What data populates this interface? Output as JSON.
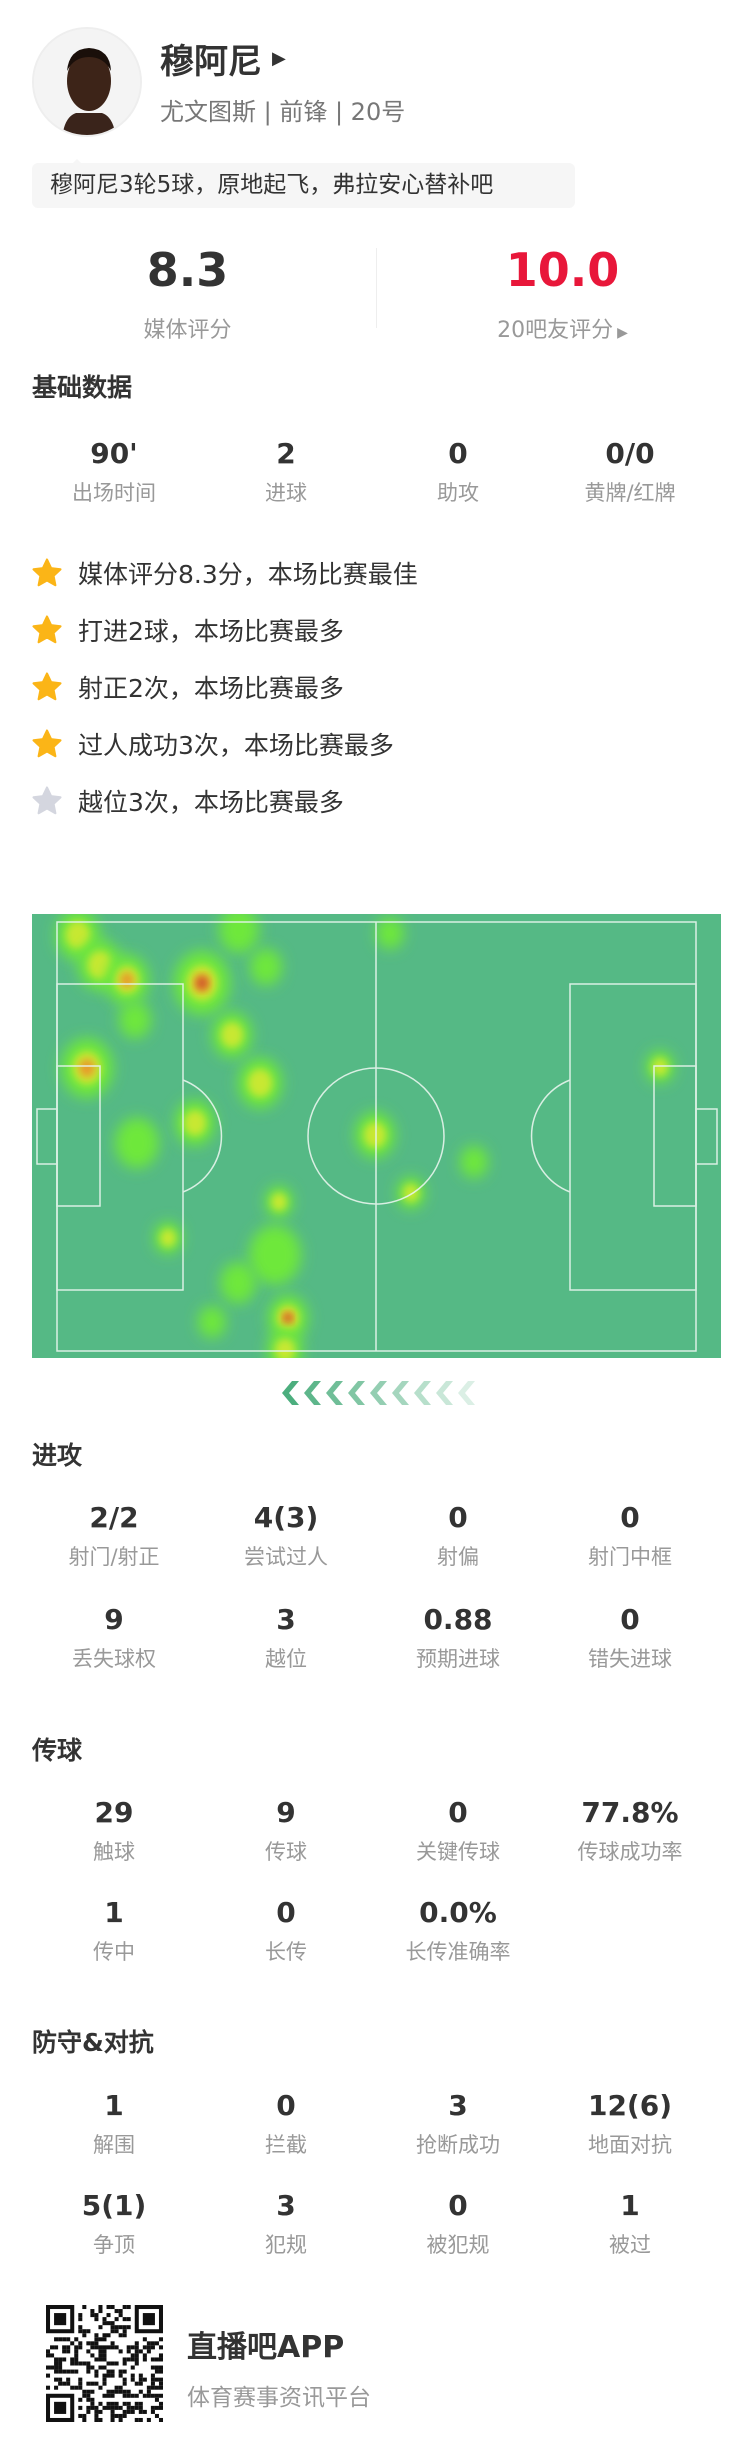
{
  "player": {
    "name": "穆阿尼",
    "team": "尤文图斯",
    "position": "前锋",
    "number": "20号",
    "subtitle": "尤文图斯 | 前锋 | 20号",
    "quote": "穆阿尼3轮5球，原地起飞，弗拉安心替补吧"
  },
  "ratings": [
    {
      "value": "8.3",
      "label": "媒体评分",
      "color": "#333333"
    },
    {
      "value": "10.0",
      "label": "20吧友评分",
      "color": "#e8173a"
    }
  ],
  "basic": {
    "title": "基础数据",
    "stats": [
      {
        "value": "90'",
        "label": "出场时间"
      },
      {
        "value": "2",
        "label": "进球"
      },
      {
        "value": "0",
        "label": "助攻"
      },
      {
        "value": "0/0",
        "label": "黄牌/红牌"
      }
    ]
  },
  "highlights": [
    {
      "text": "媒体评分8.3分，本场比赛最佳",
      "star": "gold"
    },
    {
      "text": "打进2球，本场比赛最多",
      "star": "gold"
    },
    {
      "text": "射正2次，本场比赛最多",
      "star": "gold"
    },
    {
      "text": "过人成功3次，本场比赛最多",
      "star": "gold"
    },
    {
      "text": "越位3次，本场比赛最多",
      "star": "gray"
    }
  ],
  "heatmap": {
    "pitch_color": "#55b985",
    "attack_direction": "left"
  },
  "attack": {
    "title": "进攻",
    "stats": [
      {
        "value": "2/2",
        "label": "射门/射正"
      },
      {
        "value": "4(3)",
        "label": "尝试过人"
      },
      {
        "value": "0",
        "label": "射偏"
      },
      {
        "value": "0",
        "label": "射门中框"
      },
      {
        "value": "9",
        "label": "丢失球权"
      },
      {
        "value": "3",
        "label": "越位"
      },
      {
        "value": "0.88",
        "label": "预期进球"
      },
      {
        "value": "0",
        "label": "错失进球"
      }
    ]
  },
  "passing": {
    "title": "传球",
    "stats": [
      {
        "value": "29",
        "label": "触球"
      },
      {
        "value": "9",
        "label": "传球"
      },
      {
        "value": "0",
        "label": "关键传球"
      },
      {
        "value": "77.8%",
        "label": "传球成功率"
      },
      {
        "value": "1",
        "label": "传中"
      },
      {
        "value": "0",
        "label": "长传"
      },
      {
        "value": "0.0%",
        "label": "长传准确率"
      }
    ]
  },
  "defense": {
    "title": "防守&对抗",
    "stats": [
      {
        "value": "1",
        "label": "解围"
      },
      {
        "value": "0",
        "label": "拦截"
      },
      {
        "value": "3",
        "label": "抢断成功"
      },
      {
        "value": "12(6)",
        "label": "地面对抗"
      },
      {
        "value": "5(1)",
        "label": "争顶"
      },
      {
        "value": "3",
        "label": "犯规"
      },
      {
        "value": "0",
        "label": "被犯规"
      },
      {
        "value": "1",
        "label": "被过"
      }
    ]
  },
  "footer": {
    "app_name": "直播吧APP",
    "slogan": "体育赛事资讯平台"
  }
}
